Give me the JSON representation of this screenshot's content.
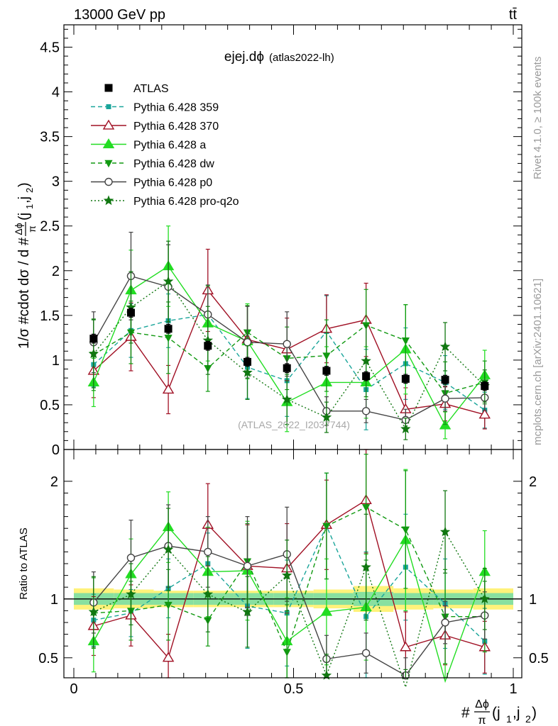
{
  "header": {
    "energy_label": "13000 GeV pp",
    "process_label": "tt̄",
    "side_label_rivet": "Rivet 4.1.0, ≥ 100k events",
    "side_label_mcplots": "mcplots.cern.ch [arXiv:2401.10621]"
  },
  "colors": {
    "ATLAS": "#000000",
    "Pythia 6.428 359": "#1aa59a",
    "Pythia 6.428 370": "#a01024",
    "Pythia 6.428 a": "#22dd22",
    "Pythia 6.428 dw": "#119911",
    "Pythia 6.428 p0": "#444444",
    "Pythia 6.428 pro-q2o": "#117711",
    "band_inner": "#88e0a0",
    "band_outer": "#fff27a"
  },
  "chart_data": [
    {
      "type": "line",
      "panel": "main",
      "title": "ejej.dϕ",
      "title_suffix": "(atlas2022-lh)",
      "ylabel": "1/σ #cdot dσ / d #Δϕ/π(j1,j2)",
      "xlabel": "#Δϕ/π(j1,j2)",
      "xlim": [
        0,
        1
      ],
      "ylim": [
        0,
        4.75
      ],
      "yticks": [
        0,
        0.5,
        1,
        1.5,
        2,
        2.5,
        3,
        3.5,
        4,
        4.5
      ],
      "yticklabels": [
        "0",
        "0.5",
        "1",
        "1.5",
        "2",
        "2.5",
        "3",
        "3.5",
        "4",
        "4.5"
      ],
      "x": [
        0.045,
        0.13,
        0.215,
        0.305,
        0.395,
        0.485,
        0.575,
        0.665,
        0.755,
        0.845,
        0.935
      ],
      "watermark": "(ATLAS_2022_I2037744)",
      "series": [
        {
          "name": "ATLAS",
          "values": [
            1.24,
            1.53,
            1.35,
            1.16,
            0.98,
            0.91,
            0.88,
            0.82,
            0.79,
            0.78,
            0.71
          ],
          "errors": [
            0.05,
            0.05,
            0.05,
            0.05,
            0.05,
            0.05,
            0.05,
            0.05,
            0.05,
            0.05,
            0.05
          ]
        },
        {
          "name": "Pythia 6.428 359",
          "values": [
            0.95,
            1.33,
            1.44,
            1.51,
            0.92,
            0.77,
            1.32,
            0.67,
            0.96,
            0.75,
            0.44
          ],
          "errors": [
            0.25,
            0.3,
            0.3,
            0.3,
            0.35,
            0.4,
            0.4,
            0.45,
            0.4,
            0.3,
            0.2
          ]
        },
        {
          "name": "Pythia 6.428 370",
          "values": [
            0.88,
            1.26,
            0.67,
            1.78,
            1.23,
            1.12,
            1.35,
            1.45,
            0.45,
            0.51,
            0.39
          ],
          "errors": [
            0.3,
            0.38,
            0.27,
            0.46,
            0.38,
            0.35,
            0.38,
            0.41,
            0.24,
            0.19,
            0.16
          ]
        },
        {
          "name": "Pythia 6.428 a",
          "values": [
            0.75,
            1.78,
            2.05,
            1.41,
            1.21,
            0.53,
            0.75,
            0.75,
            1.12,
            0.27,
            0.83
          ],
          "errors": [
            0.27,
            0.45,
            0.45,
            0.42,
            0.42,
            0.33,
            0.4,
            0.4,
            0.5,
            0.15,
            0.28
          ]
        },
        {
          "name": "Pythia 6.428 dw",
          "values": [
            1.06,
            1.31,
            1.25,
            0.91,
            1.31,
            1.02,
            1.05,
            1.39,
            1.22,
            0.63,
            0.75
          ],
          "errors": [
            0.4,
            0.35,
            0.4,
            0.26,
            0.3,
            0.35,
            0.4,
            0.4,
            0.4,
            0.35,
            0.24
          ]
        },
        {
          "name": "Pythia 6.428 p0",
          "values": [
            1.2,
            1.94,
            1.82,
            1.51,
            1.2,
            1.18,
            0.43,
            0.43,
            0.33,
            0.57,
            0.58
          ],
          "errors": [
            0.34,
            0.49,
            0.47,
            0.33,
            0.4,
            0.36,
            0.16,
            0.13,
            0.12,
            0.14,
            0.14
          ]
        },
        {
          "name": "Pythia 6.428 pro-q2o",
          "values": [
            1.07,
            1.59,
            1.88,
            1.22,
            0.86,
            0.56,
            0.36,
            0.99,
            0.23,
            1.15,
            0.71
          ],
          "errors": [
            0.38,
            0.4,
            0.45,
            0.38,
            0.3,
            0.28,
            0.17,
            0.4,
            0.12,
            0.27,
            0.18
          ]
        }
      ]
    },
    {
      "type": "line",
      "panel": "ratio",
      "ylabel": "Ratio to ATLAS",
      "xlabel": "#Δϕ/π(j1,j2)",
      "xlim": [
        0,
        1
      ],
      "ylim": [
        0.33,
        2.27
      ],
      "yticks": [
        0.5,
        1,
        2
      ],
      "yticklabels": [
        "0.5",
        "1",
        "2"
      ],
      "xticks": [
        0,
        0.5,
        1
      ],
      "xticklabels": [
        "0",
        "0.5",
        "1"
      ],
      "x": [
        0.045,
        0.13,
        0.215,
        0.305,
        0.395,
        0.485,
        0.575,
        0.665,
        0.755,
        0.845,
        0.935
      ],
      "band_inner_halfwidth": [
        0.05,
        0.05,
        0.05,
        0.05,
        0.05,
        0.05,
        0.05,
        0.06,
        0.05,
        0.05,
        0.05
      ],
      "band_outer_halfwidth": [
        0.09,
        0.08,
        0.07,
        0.07,
        0.07,
        0.07,
        0.08,
        0.11,
        0.09,
        0.08,
        0.09
      ],
      "series": [
        {
          "name": "Pythia 6.428 359",
          "values": [
            0.82,
            0.88,
            1.09,
            1.3,
            0.94,
            0.88,
            1.62,
            0.85,
            1.27,
            0.96,
            0.64
          ],
          "errors": [
            0.22,
            0.2,
            0.25,
            0.26,
            0.36,
            0.45,
            0.45,
            0.55,
            0.45,
            0.38,
            0.28
          ]
        },
        {
          "name": "Pythia 6.428 370",
          "values": [
            0.77,
            0.86,
            0.5,
            1.63,
            1.28,
            1.26,
            1.63,
            1.84,
            0.59,
            0.69,
            0.59
          ],
          "errors": [
            0.25,
            0.26,
            0.2,
            0.35,
            0.35,
            0.38,
            0.38,
            0.45,
            0.3,
            0.25,
            0.22
          ]
        },
        {
          "name": "Pythia 6.428 a",
          "values": [
            0.64,
            1.21,
            1.61,
            1.23,
            1.24,
            0.64,
            0.89,
            0.93,
            1.5,
            0.3,
            1.23
          ],
          "errors": [
            0.26,
            0.3,
            0.3,
            0.38,
            0.42,
            0.37,
            0.45,
            0.45,
            0.6,
            0.15,
            0.35
          ]
        },
        {
          "name": "Pythia 6.428 dw",
          "values": [
            0.88,
            0.9,
            0.95,
            0.82,
            1.32,
            0.55,
            1.62,
            1.78,
            1.59,
            0.85,
            0.85
          ],
          "errors": [
            0.3,
            0.25,
            0.3,
            0.22,
            0.32,
            0.4,
            0.45,
            0.45,
            0.5,
            0.4,
            0.3
          ]
        },
        {
          "name": "Pythia 6.428 p0",
          "values": [
            0.97,
            1.35,
            1.45,
            1.4,
            1.28,
            1.38,
            0.49,
            0.54,
            0.35,
            0.8,
            0.86
          ],
          "errors": [
            0.26,
            0.32,
            0.35,
            0.3,
            0.42,
            0.4,
            0.2,
            0.17,
            0.15,
            0.18,
            0.2
          ]
        },
        {
          "name": "Pythia 6.428 pro-q2o",
          "values": [
            0.89,
            1.04,
            1.42,
            1.04,
            0.89,
            1.2,
            0.35,
            1.27,
            0.25,
            1.57,
            1.0
          ],
          "errors": [
            0.3,
            0.26,
            0.35,
            0.32,
            0.3,
            0.3,
            0.18,
            0.45,
            0.15,
            0.35,
            0.26
          ]
        }
      ]
    }
  ]
}
